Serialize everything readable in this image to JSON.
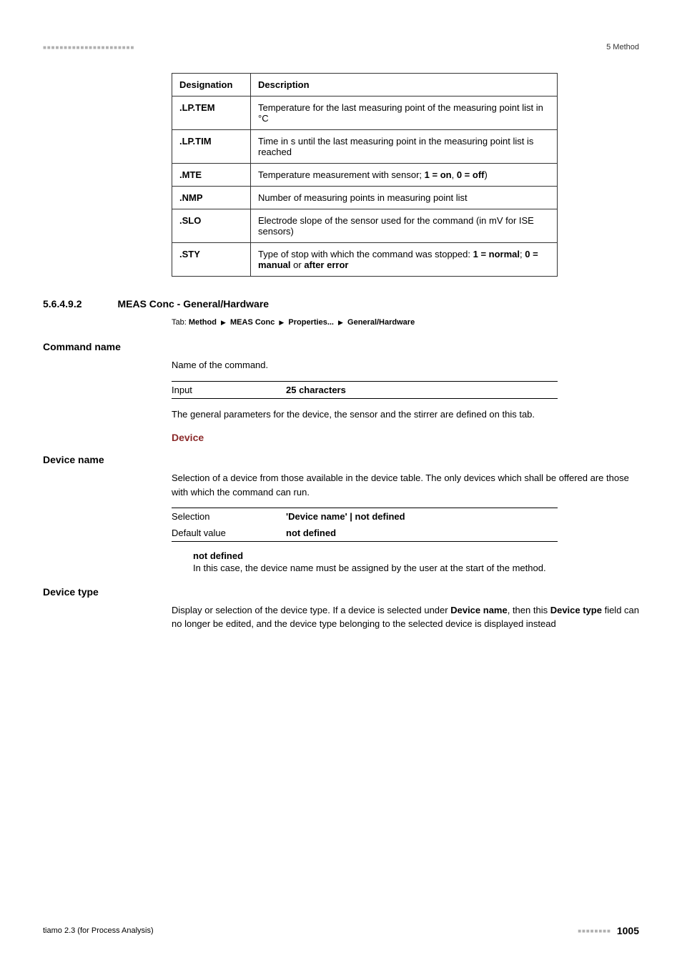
{
  "header": {
    "section_label": "5 Method"
  },
  "variables_table": {
    "columns": [
      "Designation",
      "Description"
    ],
    "rows": [
      {
        "designation": ".LP.TEM",
        "description": "Temperature for the last measuring point of the measuring point list in °C"
      },
      {
        "designation": ".LP.TIM",
        "description": "Time in s until the last measuring point in the measuring point list is reached"
      },
      {
        "designation": ".MTE",
        "description_prefix": "Temperature measurement with sensor; ",
        "bold1": "1 = on",
        "sep1": ", ",
        "bold2": "0 = off",
        "suffix": ")"
      },
      {
        "designation": ".NMP",
        "description": "Number of measuring points in measuring point list"
      },
      {
        "designation": ".SLO",
        "description": "Electrode slope of the sensor used for the command (in mV for ISE sensors)"
      },
      {
        "designation": ".STY",
        "description_prefix": "Type of stop with which the command was stopped: ",
        "bold1": "1 = normal",
        "sep1": "; ",
        "bold2": "0 = manual",
        "sep2": " or ",
        "bold3": "after error"
      }
    ]
  },
  "section": {
    "number": "5.6.4.9.2",
    "title": "MEAS Conc - General/Hardware"
  },
  "tab_path": {
    "label": "Tab: ",
    "items": [
      "Method",
      "MEAS Conc",
      "Properties...",
      "General/Hardware"
    ]
  },
  "command_name": {
    "label": "Command name",
    "description": "Name of the command.",
    "input_label": "Input",
    "input_value": "25 characters",
    "general_text": "The general parameters for the device, the sensor and the stirrer are defined on this tab."
  },
  "device_section": {
    "header": "Device"
  },
  "device_name": {
    "label": "Device name",
    "description": "Selection of a device from those available in the device table. The only devices which shall be offered are those with which the command can run.",
    "selection_label": "Selection",
    "selection_value": "'Device name' | not defined",
    "default_label": "Default value",
    "default_value": "not defined",
    "not_defined_label": "not defined",
    "not_defined_text": "In this case, the device name must be assigned by the user at the start of the method."
  },
  "device_type": {
    "label": "Device type",
    "description_prefix": "Display or selection of the device type. If a device is selected under ",
    "bold1": "Device name",
    "mid": ", then this ",
    "bold2": "Device type",
    "suffix": " field can no longer be edited, and the device type belonging to the selected device is displayed instead"
  },
  "footer": {
    "left": "tiamo 2.3 (for Process Analysis)",
    "page": "1005"
  }
}
